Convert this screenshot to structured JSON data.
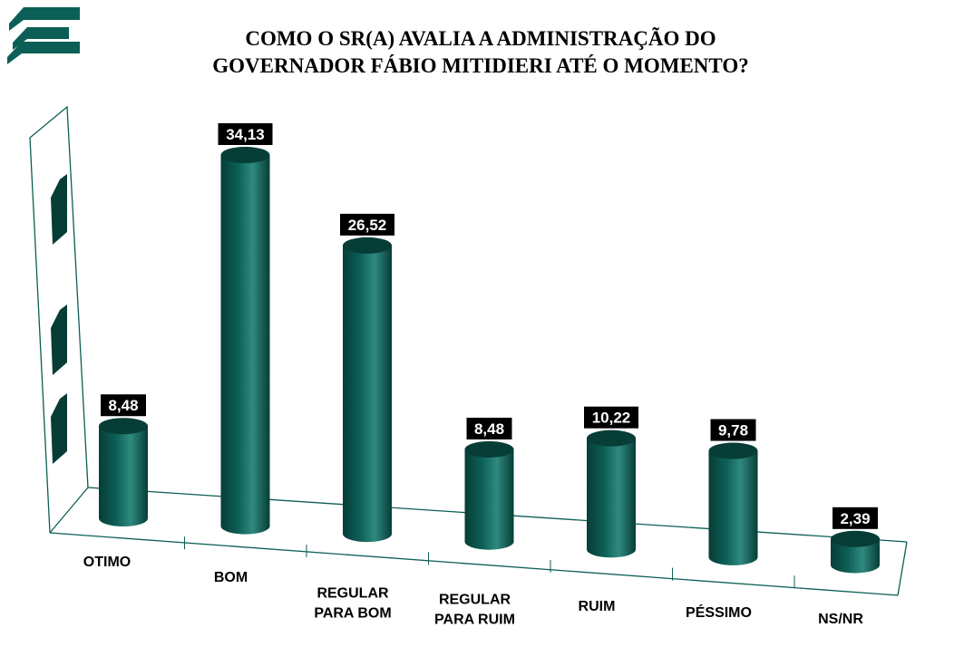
{
  "chart_data": {
    "type": "bar",
    "title_lines": [
      "COMO O SR(A) AVALIA A ADMINISTRAÇÃO DO",
      "GOVERNADOR FÁBIO MITIDIERI ATÉ O MOMENTO?"
    ],
    "categories": [
      [
        "OTIMO"
      ],
      [
        "BOM"
      ],
      [
        "REGULAR",
        "PARA BOM"
      ],
      [
        "REGULAR",
        "PARA RUIM"
      ],
      [
        "RUIM"
      ],
      [
        "PÉSSIMO"
      ],
      [
        "NS/NR"
      ]
    ],
    "values": [
      8.48,
      34.13,
      26.52,
      8.48,
      10.22,
      9.78,
      2.39
    ],
    "value_labels": [
      "8,48",
      "34,13",
      "26,52",
      "8,48",
      "10,22",
      "9,78",
      "2,39"
    ],
    "bar_shape": "cylinder",
    "colors": {
      "bar": "#0c5f56",
      "bar_dark": "#073d37",
      "bar_light": "#2f8a7f",
      "label_bg": "#000000",
      "label_text": "#ffffff",
      "frame": "#0c5f56"
    }
  }
}
